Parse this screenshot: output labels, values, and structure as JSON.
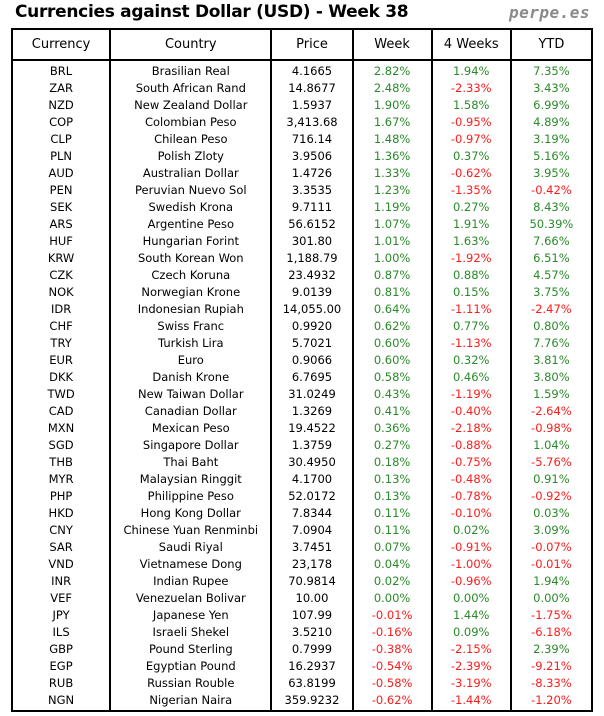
{
  "title": "Currencies against Dollar (USD) - Week 38",
  "brand": "perpe.es",
  "colors": {
    "positive": "#2a8a2a",
    "negative": "#ff1a1a"
  },
  "headers": [
    "Currency",
    "Country",
    "Price",
    "Week",
    "4 Weeks",
    "YTD"
  ],
  "rows": [
    [
      "BRL",
      "Brasilian Real",
      "4.1665",
      "2.82%",
      "1.94%",
      "7.35%"
    ],
    [
      "ZAR",
      "South African Rand",
      "14.8677",
      "2.48%",
      "-2.33%",
      "3.43%"
    ],
    [
      "NZD",
      "New Zealand Dollar",
      "1.5937",
      "1.90%",
      "1.58%",
      "6.99%"
    ],
    [
      "COP",
      "Colombian Peso",
      "3,413.68",
      "1.67%",
      "-0.95%",
      "4.89%"
    ],
    [
      "CLP",
      "Chilean Peso",
      "716.14",
      "1.48%",
      "-0.97%",
      "3.19%"
    ],
    [
      "PLN",
      "Polish Zloty",
      "3.9506",
      "1.36%",
      "0.37%",
      "5.16%"
    ],
    [
      "AUD",
      "Australian Dollar",
      "1.4726",
      "1.33%",
      "-0.62%",
      "3.95%"
    ],
    [
      "PEN",
      "Peruvian Nuevo Sol",
      "3.3535",
      "1.23%",
      "-1.35%",
      "-0.42%"
    ],
    [
      "SEK",
      "Swedish Krona",
      "9.7111",
      "1.19%",
      "0.27%",
      "8.43%"
    ],
    [
      "ARS",
      "Argentine Peso",
      "56.6152",
      "1.07%",
      "1.91%",
      "50.39%"
    ],
    [
      "HUF",
      "Hungarian Forint",
      "301.80",
      "1.01%",
      "1.63%",
      "7.66%"
    ],
    [
      "KRW",
      "South Korean Won",
      "1,188.79",
      "1.00%",
      "-1.92%",
      "6.51%"
    ],
    [
      "CZK",
      "Czech Koruna",
      "23.4932",
      "0.87%",
      "0.88%",
      "4.57%"
    ],
    [
      "NOK",
      "Norwegian Krone",
      "9.0139",
      "0.81%",
      "0.15%",
      "3.75%"
    ],
    [
      "IDR",
      "Indonesian Rupiah",
      "14,055.00",
      "0.64%",
      "-1.11%",
      "-2.47%"
    ],
    [
      "CHF",
      "Swiss Franc",
      "0.9920",
      "0.62%",
      "0.77%",
      "0.80%"
    ],
    [
      "TRY",
      "Turkish Lira",
      "5.7021",
      "0.60%",
      "-1.13%",
      "7.76%"
    ],
    [
      "EUR",
      "Euro",
      "0.9066",
      "0.60%",
      "0.32%",
      "3.81%"
    ],
    [
      "DKK",
      "Danish Krone",
      "6.7695",
      "0.58%",
      "0.46%",
      "3.80%"
    ],
    [
      "TWD",
      "New Taiwan Dollar",
      "31.0249",
      "0.43%",
      "-1.19%",
      "1.59%"
    ],
    [
      "CAD",
      "Canadian Dollar",
      "1.3269",
      "0.41%",
      "-0.40%",
      "-2.64%"
    ],
    [
      "MXN",
      "Mexican Peso",
      "19.4522",
      "0.36%",
      "-2.18%",
      "-0.98%"
    ],
    [
      "SGD",
      "Singapore Dollar",
      "1.3759",
      "0.27%",
      "-0.88%",
      "1.04%"
    ],
    [
      "THB",
      "Thai Baht",
      "30.4950",
      "0.18%",
      "-0.75%",
      "-5.76%"
    ],
    [
      "MYR",
      "Malaysian Ringgit",
      "4.1700",
      "0.13%",
      "-0.48%",
      "0.91%"
    ],
    [
      "PHP",
      "Philippine Peso",
      "52.0172",
      "0.13%",
      "-0.78%",
      "-0.92%"
    ],
    [
      "HKD",
      "Hong Kong Dollar",
      "7.8344",
      "0.11%",
      "-0.10%",
      "0.03%"
    ],
    [
      "CNY",
      "Chinese Yuan Renminbi",
      "7.0904",
      "0.11%",
      "0.02%",
      "3.09%"
    ],
    [
      "SAR",
      "Saudi Riyal",
      "3.7451",
      "0.07%",
      "-0.91%",
      "-0.07%"
    ],
    [
      "VND",
      "Vietnamese Dong",
      "23,178",
      "0.04%",
      "-1.00%",
      "-0.01%"
    ],
    [
      "INR",
      "Indian Rupee",
      "70.9814",
      "0.02%",
      "-0.96%",
      "1.94%"
    ],
    [
      "VEF",
      "Venezuelan Bolivar",
      "10.00",
      "0.00%",
      "0.00%",
      "0.00%"
    ],
    [
      "JPY",
      "Japanese Yen",
      "107.99",
      "-0.01%",
      "1.44%",
      "-1.75%"
    ],
    [
      "ILS",
      "Israeli Shekel",
      "3.5210",
      "-0.16%",
      "0.09%",
      "-6.18%"
    ],
    [
      "GBP",
      "Pound Sterling",
      "0.7999",
      "-0.38%",
      "-2.15%",
      "2.39%"
    ],
    [
      "EGP",
      "Egyptian Pound",
      "16.2937",
      "-0.54%",
      "-2.39%",
      "-9.21%"
    ],
    [
      "RUB",
      "Russian Rouble",
      "63.8199",
      "-0.58%",
      "-3.19%",
      "-8.33%"
    ],
    [
      "NGN",
      "Nigerian Naira",
      "359.9232",
      "-0.62%",
      "-1.44%",
      "-1.20%"
    ]
  ]
}
